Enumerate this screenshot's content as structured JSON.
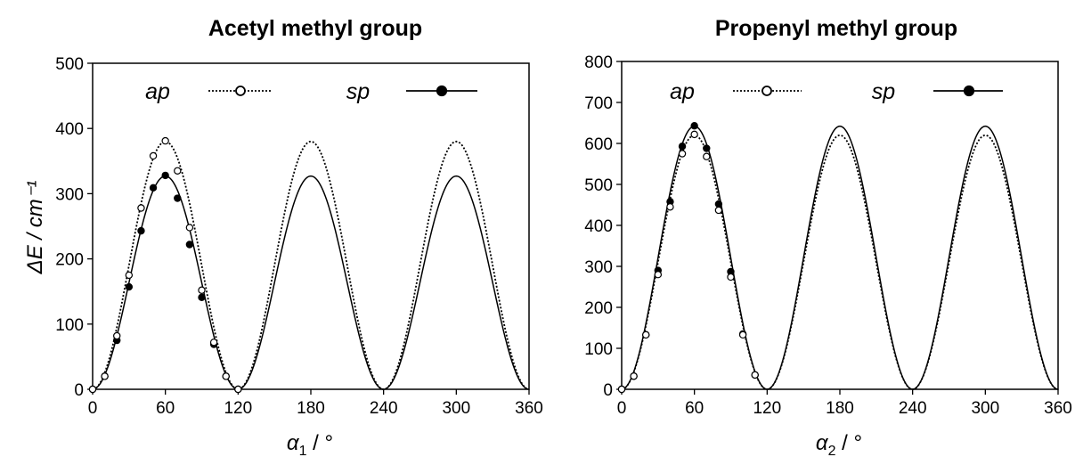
{
  "chart_data": [
    {
      "type": "line",
      "title": "Acetyl methyl group",
      "ylabel": "ΔE / cm⁻¹",
      "xlabel": "α1 / °",
      "xlim": [
        0,
        360
      ],
      "ylim": [
        0,
        500
      ],
      "xticks": [
        "0",
        "60",
        "120",
        "180",
        "240",
        "300",
        "360"
      ],
      "yticks": [
        "0",
        "100",
        "200",
        "300",
        "400",
        "500"
      ],
      "legend": [
        "ap",
        "sp"
      ],
      "legend_position": "top",
      "series": [
        {
          "name": "ap",
          "style": "dotted line, open circles",
          "curve_barrier": 380,
          "points": [
            [
              0,
              0
            ],
            [
              10,
              20
            ],
            [
              20,
              82
            ],
            [
              30,
              175
            ],
            [
              40,
              278
            ],
            [
              50,
              358
            ],
            [
              60,
              381
            ],
            [
              70,
              335
            ],
            [
              80,
              248
            ],
            [
              90,
              152
            ],
            [
              100,
              72
            ],
            [
              110,
              20
            ],
            [
              120,
              0
            ]
          ]
        },
        {
          "name": "sp",
          "style": "solid line, filled circles",
          "curve_barrier": 327,
          "points": [
            [
              0,
              0
            ],
            [
              10,
              20
            ],
            [
              20,
              75
            ],
            [
              30,
              157
            ],
            [
              40,
              243
            ],
            [
              50,
              309
            ],
            [
              60,
              328
            ],
            [
              70,
              293
            ],
            [
              80,
              222
            ],
            [
              90,
              141
            ],
            [
              100,
              69
            ],
            [
              110,
              20
            ],
            [
              120,
              0
            ]
          ]
        }
      ]
    },
    {
      "type": "line",
      "title": "Propenyl methyl group",
      "xlabel": "α2 / °",
      "xlim": [
        0,
        360
      ],
      "ylim": [
        0,
        800
      ],
      "xticks": [
        "0",
        "60",
        "120",
        "180",
        "240",
        "300",
        "360"
      ],
      "yticks": [
        "0",
        "100",
        "200",
        "300",
        "400",
        "500",
        "600",
        "700",
        "800"
      ],
      "legend": [
        "ap",
        "sp"
      ],
      "legend_position": "top",
      "series": [
        {
          "name": "ap",
          "style": "dotted line, open circles",
          "curve_barrier": 620,
          "points": [
            [
              0,
              0
            ],
            [
              10,
              32
            ],
            [
              20,
              133
            ],
            [
              30,
              280
            ],
            [
              40,
              445
            ],
            [
              50,
              575
            ],
            [
              60,
              622
            ],
            [
              70,
              568
            ],
            [
              80,
              437
            ],
            [
              90,
              274
            ],
            [
              100,
              133
            ],
            [
              110,
              35
            ]
          ]
        },
        {
          "name": "sp",
          "style": "solid line, filled circles",
          "curve_barrier": 642,
          "points": [
            [
              0,
              0
            ],
            [
              10,
              32
            ],
            [
              20,
              133
            ],
            [
              30,
              290
            ],
            [
              40,
              458
            ],
            [
              50,
              593
            ],
            [
              60,
              643
            ],
            [
              70,
              588
            ],
            [
              80,
              452
            ],
            [
              90,
              287
            ],
            [
              100,
              135
            ],
            [
              110,
              35
            ]
          ]
        }
      ]
    }
  ]
}
